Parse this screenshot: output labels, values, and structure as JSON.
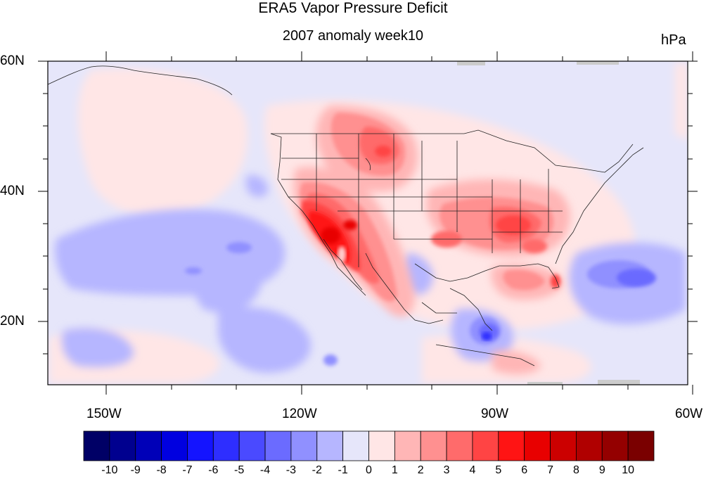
{
  "title": "ERA5 Vapor Pressure Deficit",
  "subtitle": "2007 anomaly week10",
  "units": "hPa",
  "y_axis": {
    "ticks": [
      "60N",
      "40N",
      "20N"
    ]
  },
  "x_axis": {
    "ticks": [
      "150W",
      "120W",
      "90W",
      "60W"
    ]
  },
  "colorbar": {
    "labels": [
      "-10",
      "-9",
      "-8",
      "-7",
      "-6",
      "-5",
      "-4",
      "-3",
      "-2",
      "-1",
      "0",
      "1",
      "2",
      "3",
      "4",
      "5",
      "6",
      "7",
      "8",
      "9",
      "10"
    ],
    "colors": [
      "#000066",
      "#00008f",
      "#0000b8",
      "#0000e0",
      "#1414ff",
      "#2e2eff",
      "#4a4aff",
      "#6b6bff",
      "#9090ff",
      "#b6b6ff",
      "#e6e6fa",
      "#ffe6e6",
      "#ffb6b6",
      "#ff9090",
      "#ff6b6b",
      "#ff4444",
      "#ff1414",
      "#e80000",
      "#cc0000",
      "#b00000",
      "#940000",
      "#7a0000"
    ]
  }
}
